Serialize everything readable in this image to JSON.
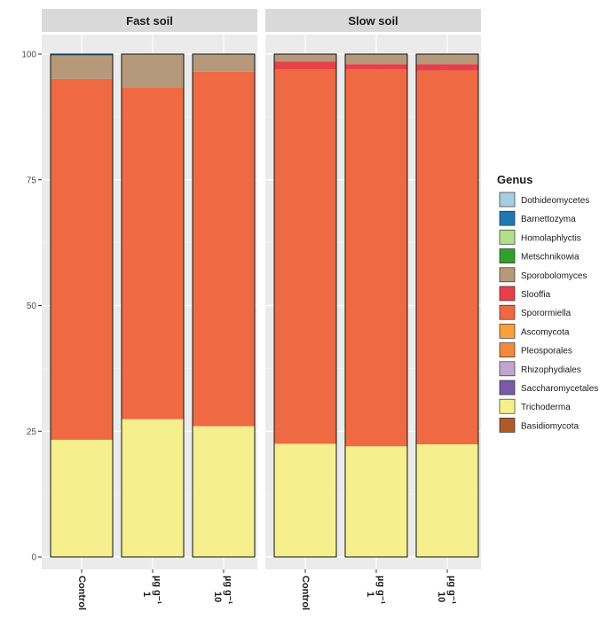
{
  "chart_data": {
    "type": "bar",
    "stacked": true,
    "legend": {
      "title": "Genus",
      "position": "right"
    },
    "yticks": [
      "0",
      "25",
      "50",
      "75",
      "100"
    ],
    "ylim": [
      0,
      100
    ],
    "grid": true,
    "genera": [
      {
        "name": "Dothideomycetes",
        "color": "#a6cee3"
      },
      {
        "name": "Barnettozyma",
        "color": "#1f78b4"
      },
      {
        "name": "Homolaphlyctis",
        "color": "#b2df8a"
      },
      {
        "name": "Metschnikowia",
        "color": "#33a02c"
      },
      {
        "name": "Sporobolomyces",
        "color": "#b5997a"
      },
      {
        "name": "Slooffia",
        "color": "#e8404a"
      },
      {
        "name": "Sporormiella",
        "color": "#ef6a42"
      },
      {
        "name": "Ascomycota",
        "color": "#f8a13a"
      },
      {
        "name": "Pleosporales",
        "color": "#f0883e"
      },
      {
        "name": "Rhizophydiales",
        "color": "#c2a5cf"
      },
      {
        "name": "Saccharomycetales",
        "color": "#7b5aa6"
      },
      {
        "name": "Trichoderma",
        "color": "#f5ef8e"
      },
      {
        "name": "Basidiomycota",
        "color": "#b15928"
      }
    ],
    "panels": [
      {
        "title": "Fast soil",
        "bars": [
          {
            "label": "Control",
            "segments": {
              "Trichoderma": 23.3,
              "Sporormiella": 71.8,
              "Sporobolomyces": 4.6,
              "Barnettozyma": 0.3
            }
          },
          {
            "label": "µg g⁻¹",
            "label_num": "1",
            "segments": {
              "Trichoderma": 27.4,
              "Sporormiella": 65.9,
              "Sporobolomyces": 6.7
            }
          },
          {
            "label": "µg g⁻¹",
            "label_num": "10",
            "segments": {
              "Trichoderma": 26.0,
              "Sporormiella": 70.5,
              "Sporobolomyces": 3.5
            }
          }
        ]
      },
      {
        "title": "Slow soil",
        "bars": [
          {
            "label": "Control",
            "segments": {
              "Trichoderma": 22.5,
              "Sporormiella": 74.5,
              "Slooffia": 1.5,
              "Sporobolomyces": 1.5
            }
          },
          {
            "label": "µg g⁻¹",
            "label_num": "1",
            "segments": {
              "Trichoderma": 22.0,
              "Sporormiella": 75.0,
              "Slooffia": 1.0,
              "Sporobolomyces": 2.0
            }
          },
          {
            "label": "µg g⁻¹",
            "label_num": "10",
            "segments": {
              "Trichoderma": 22.4,
              "Sporormiella": 74.3,
              "Slooffia": 1.3,
              "Sporobolomyces": 2.0
            }
          }
        ]
      }
    ]
  }
}
